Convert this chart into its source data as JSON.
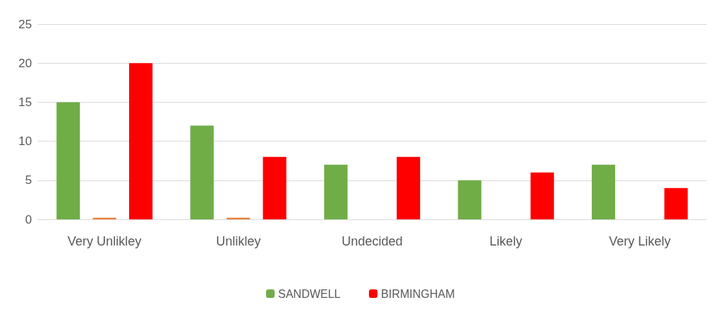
{
  "chart_data": {
    "type": "bar",
    "categories": [
      "Very Unlikley",
      "Unlikley",
      "Undecided",
      "Likely",
      "Very Likely"
    ],
    "series": [
      {
        "name": "SANDWELL",
        "color": "#70ad47",
        "values": [
          15,
          12,
          7,
          5,
          7
        ]
      },
      {
        "color": "#ed7d31",
        "values": [
          0.2,
          0.2,
          null,
          null,
          null
        ]
      },
      {
        "name": "BIRMINGHAM",
        "color": "#ff0000",
        "values": [
          20,
          8,
          8,
          6,
          4
        ]
      }
    ],
    "ylim": [
      0,
      25
    ],
    "yticks": [
      0,
      5,
      10,
      15,
      20,
      25
    ],
    "grid": "y",
    "legend": "bottom"
  }
}
